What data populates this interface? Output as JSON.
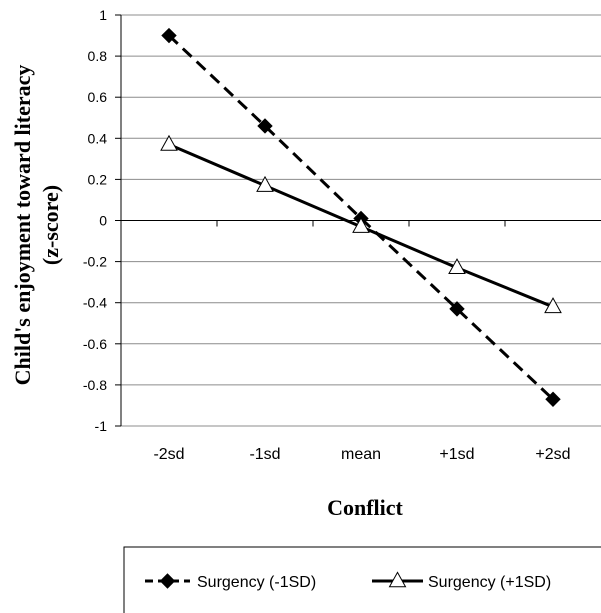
{
  "chart_data": {
    "type": "line",
    "categories": [
      "-2sd",
      "-1sd",
      "mean",
      "+1sd",
      "+2sd"
    ],
    "series": [
      {
        "name": "Surgency (-1SD)",
        "values": [
          0.9,
          0.46,
          0.01,
          -0.43,
          -0.87
        ],
        "style": "dashed",
        "marker": "diamond-filled",
        "color": "#000000"
      },
      {
        "name": "Surgency (+1SD)",
        "values": [
          0.37,
          0.17,
          -0.03,
          -0.23,
          -0.42
        ],
        "style": "solid",
        "marker": "triangle-open",
        "color": "#000000"
      }
    ],
    "title": "",
    "xlabel": "Conflict",
    "ylabel_line1": "Child's enjoyment  toward literacy",
    "ylabel_line2": "(z-score)",
    "ylim": [
      -1,
      1
    ],
    "yticks": [
      1,
      0.8,
      0.6,
      0.4,
      0.2,
      0,
      -0.2,
      -0.4,
      -0.6,
      -0.8,
      -1
    ],
    "ytick_labels": [
      "1",
      "0.8",
      "0.6",
      "0.4",
      "0.2",
      "0",
      "-0.2",
      "-0.4",
      "-0.6",
      "-0.8",
      "-1"
    ],
    "grid": true,
    "legend_position": "bottom"
  }
}
